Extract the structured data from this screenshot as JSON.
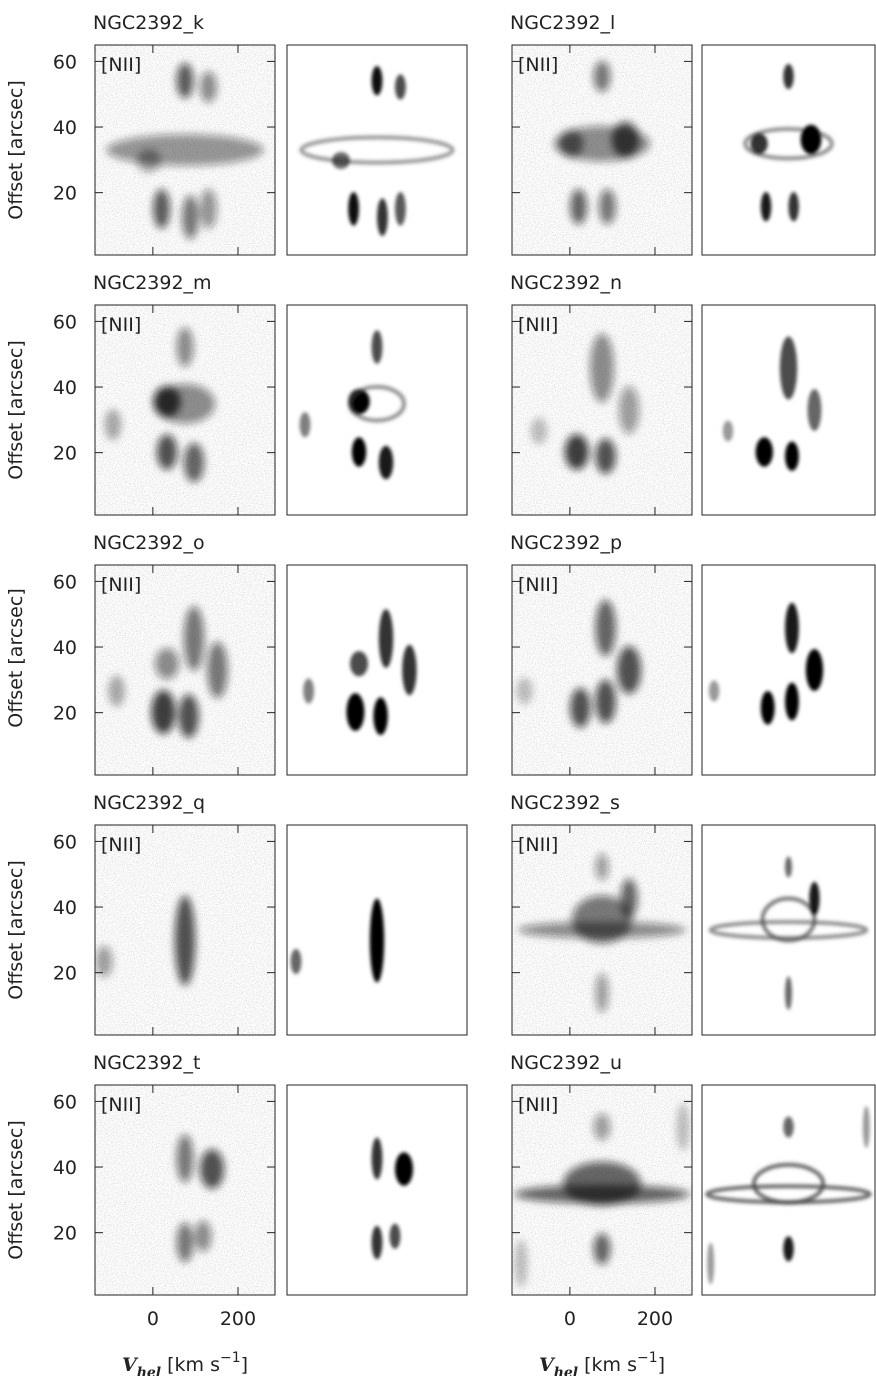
{
  "chart_data": {
    "type": "panels",
    "ylabel": "Offset [arcsec]",
    "xlabel": {
      "symbol": "V",
      "subscript": "hel",
      "unit": "[km s",
      "exponent": "−1",
      "close": "]"
    },
    "annotation": "[NII]",
    "xlim": [
      -136,
      287
    ],
    "ylim": [
      1,
      65
    ],
    "xticks": [
      0,
      200
    ],
    "yticks": [
      20,
      40,
      60
    ],
    "panels": [
      {
        "title": "NGC2392_k"
      },
      {
        "title": "NGC2392_l"
      },
      {
        "title": "NGC2392_m"
      },
      {
        "title": "NGC2392_n"
      },
      {
        "title": "NGC2392_o"
      },
      {
        "title": "NGC2392_p"
      },
      {
        "title": "NGC2392_q"
      },
      {
        "title": "NGC2392_s"
      },
      {
        "title": "NGC2392_t"
      },
      {
        "title": "NGC2392_u"
      }
    ]
  }
}
